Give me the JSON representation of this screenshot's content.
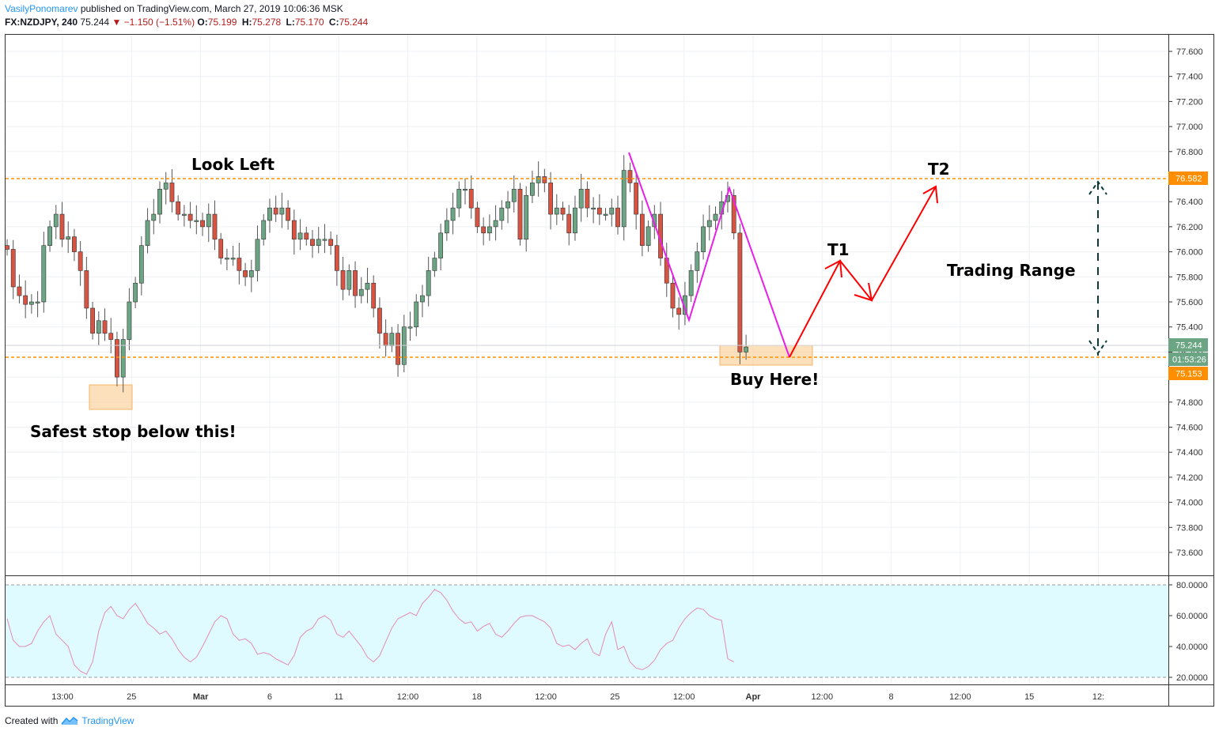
{
  "header": {
    "author": "VasilyPonomarev",
    "published": "published on TradingView.com, March 27, 2019 10:06:36 MSK",
    "symbol": "FX:NZDJPY, 240",
    "last": "75.244",
    "change": "−1.150 (−1.51%)",
    "open_label": "O:",
    "open": "75.199",
    "high_label": "H:",
    "high": "75.278",
    "low_label": "L:",
    "low": "75.170",
    "close_label": "C:",
    "close": "75.244"
  },
  "footer": {
    "created_with": "Created with",
    "brand": "TradingView"
  },
  "colors": {
    "up": "#6ba583",
    "down": "#d75442",
    "level": "#ff8f00",
    "zigzag": "#e91ee9",
    "arrow": "#ff0000",
    "rsi": "#e08ab8",
    "rsi_band": "#e0fbff"
  },
  "annotations": {
    "look_left": "Look Left",
    "safest_stop": "Safest stop below this!",
    "buy_here": "Buy Here!",
    "t1": "T1",
    "t2": "T2",
    "trading_range": "Trading Range"
  },
  "badges": {
    "price": "75.244",
    "countdown": "01:53:26",
    "low_level": "75.153",
    "high_level": "76.582"
  },
  "chart_data": {
    "type": "candlestick",
    "title": "FX:NZDJPY, 240",
    "xlabel": "",
    "ylabel": "",
    "ylim": [
      73.4,
      77.7
    ],
    "y_ticks": [
      "77.600",
      "77.400",
      "77.200",
      "77.000",
      "76.800",
      "76.600",
      "76.400",
      "76.200",
      "76.000",
      "75.800",
      "75.600",
      "75.400",
      "75.200",
      "75.000",
      "74.800",
      "74.600",
      "74.400",
      "74.200",
      "74.000",
      "73.800",
      "73.600"
    ],
    "x_ticks": [
      "13:00",
      "25",
      "Mar",
      "6",
      "11",
      "12:00",
      "18",
      "12:00",
      "25",
      "12:00",
      "Apr",
      "12:00",
      "8",
      "12:00",
      "15",
      "12:"
    ],
    "levels": [
      76.582,
      75.153
    ],
    "closes": [
      76.02,
      75.72,
      75.65,
      75.58,
      75.6,
      75.6,
      76.05,
      76.2,
      76.3,
      76.1,
      76.12,
      76.0,
      75.85,
      75.55,
      75.35,
      75.45,
      75.35,
      75.3,
      75.0,
      75.3,
      75.6,
      75.75,
      76.05,
      76.25,
      76.3,
      76.5,
      76.55,
      76.4,
      76.3,
      76.3,
      76.25,
      76.25,
      76.2,
      76.3,
      76.1,
      75.95,
      75.95,
      75.95,
      75.85,
      75.8,
      75.85,
      76.1,
      76.25,
      76.35,
      76.3,
      76.35,
      76.25,
      76.1,
      76.15,
      76.1,
      76.05,
      76.1,
      76.1,
      76.05,
      75.85,
      75.7,
      75.85,
      75.65,
      75.7,
      75.75,
      75.55,
      75.35,
      75.25,
      75.35,
      75.1,
      75.4,
      75.4,
      75.6,
      75.65,
      75.85,
      75.95,
      76.15,
      76.25,
      76.35,
      76.5,
      76.5,
      76.35,
      76.2,
      76.15,
      76.2,
      76.25,
      76.35,
      76.4,
      76.5,
      76.1,
      76.45,
      76.55,
      76.6,
      76.55,
      76.3,
      76.35,
      76.3,
      76.15,
      76.35,
      76.5,
      76.35,
      76.35,
      76.3,
      76.3,
      76.35,
      76.2,
      76.65,
      76.55,
      76.3,
      76.05,
      76.2,
      76.3,
      75.95,
      75.75,
      75.55,
      75.5,
      75.65,
      75.85,
      76.0,
      76.2,
      76.25,
      76.3,
      76.4,
      76.45,
      76.15,
      75.2,
      75.24
    ],
    "rsi": {
      "name": "RSI",
      "ylim": [
        15,
        85
      ],
      "y_ticks": [
        "80.0000",
        "60.0000",
        "40.0000",
        "20.0000"
      ],
      "bands": [
        80,
        20
      ],
      "values": [
        58,
        44,
        40,
        40,
        42,
        50,
        56,
        60,
        48,
        44,
        40,
        28,
        24,
        22,
        30,
        50,
        62,
        66,
        60,
        58,
        64,
        68,
        62,
        55,
        52,
        48,
        50,
        45,
        38,
        33,
        30,
        33,
        40,
        48,
        56,
        60,
        58,
        48,
        44,
        45,
        42,
        35,
        36,
        35,
        32,
        30,
        28,
        34,
        46,
        50,
        52,
        58,
        60,
        57,
        48,
        46,
        50,
        45,
        40,
        33,
        30,
        34,
        43,
        52,
        58,
        60,
        62,
        60,
        68,
        72,
        77,
        75,
        70,
        63,
        58,
        55,
        56,
        50,
        53,
        55,
        48,
        46,
        50,
        55,
        59,
        60,
        60,
        58,
        56,
        52,
        42,
        40,
        41,
        38,
        42,
        45,
        36,
        34,
        48,
        56,
        38,
        40,
        30,
        26,
        25,
        27,
        31,
        38,
        42,
        44,
        52,
        58,
        62,
        65,
        64,
        60,
        58,
        57,
        32,
        30
      ]
    }
  }
}
